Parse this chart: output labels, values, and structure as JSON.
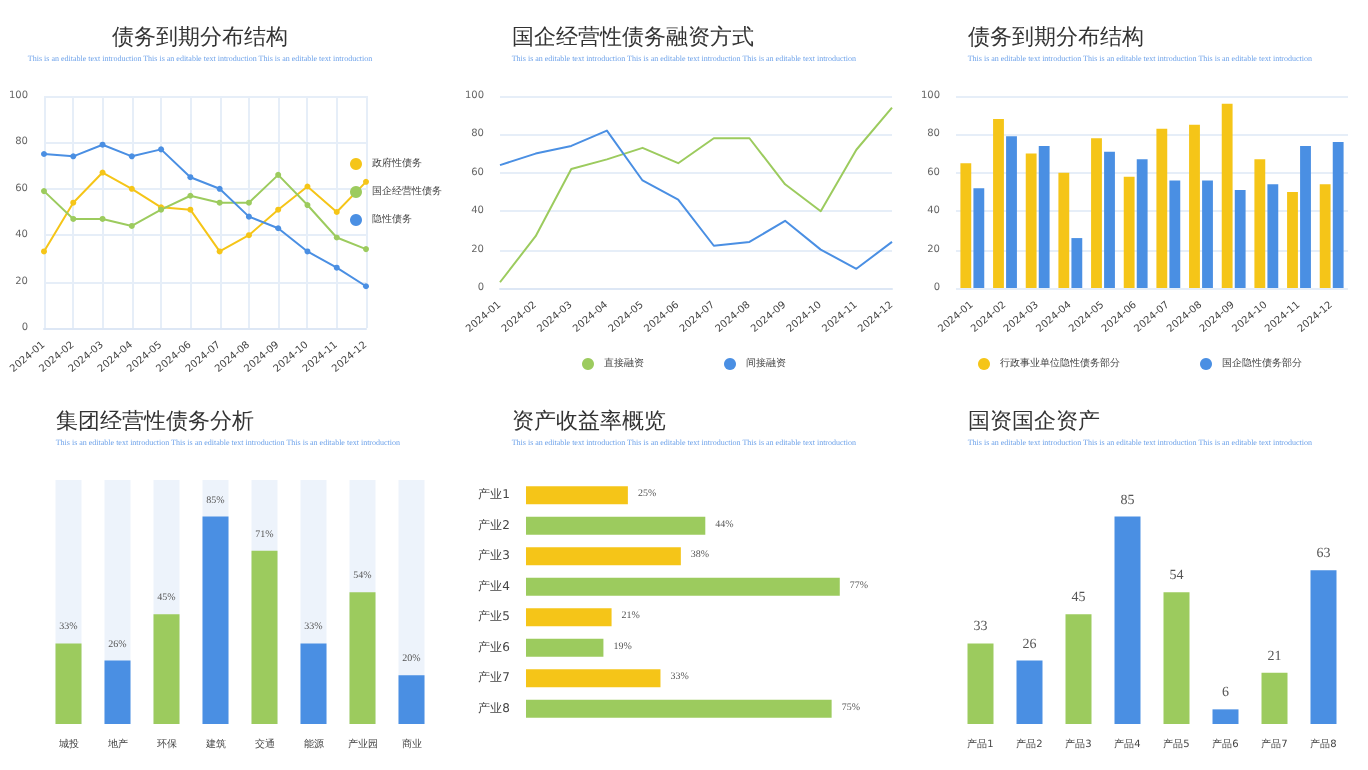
{
  "chart_data": [
    {
      "type": "line",
      "title": "债务到期分布结构",
      "subtitle": "This is an editable text introduction This is an editable text introduction This is an editable text introduction",
      "categories": [
        "2024-01",
        "2024-02",
        "2024-03",
        "2024-04",
        "2024-05",
        "2024-06",
        "2024-07",
        "2024-08",
        "2024-09",
        "2024-10",
        "2024-11",
        "2024-12"
      ],
      "series": [
        {
          "name": "政府性债务",
          "color": "#f5c518",
          "values": [
            33,
            54,
            67,
            60,
            52,
            51,
            33,
            40,
            51,
            61,
            50,
            63
          ]
        },
        {
          "name": "国企经营性债务",
          "color": "#9ccb5e",
          "values": [
            59,
            47,
            47,
            44,
            51,
            57,
            54,
            54,
            66,
            53,
            39,
            34
          ]
        },
        {
          "name": "隐性债务",
          "color": "#4a8fe3",
          "values": [
            75,
            74,
            79,
            74,
            77,
            65,
            60,
            48,
            43,
            33,
            26,
            18
          ]
        }
      ],
      "ylim": [
        0,
        100
      ],
      "yticks": [
        0,
        20,
        40,
        60,
        80,
        100
      ],
      "grid": true,
      "legend": "right",
      "marker": "circle"
    },
    {
      "type": "line",
      "title": "国企经营性债务融资方式",
      "subtitle": "This is an editable text introduction This is an editable text introduction This is an editable text introduction",
      "categories": [
        "2024-01",
        "2024-02",
        "2024-03",
        "2024-04",
        "2024-05",
        "2024-06",
        "2024-07",
        "2024-08",
        "2024-09",
        "2024-10",
        "2024-11",
        "2024-12"
      ],
      "series": [
        {
          "name": "直接融资",
          "color": "#9ccb5e",
          "values": [
            3,
            27,
            62,
            67,
            73,
            65,
            78,
            78,
            54,
            40,
            72,
            94
          ]
        },
        {
          "name": "间接融资",
          "color": "#4a8fe3",
          "values": [
            64,
            70,
            74,
            82,
            56,
            46,
            22,
            24,
            35,
            20,
            10,
            24
          ]
        }
      ],
      "ylim": [
        0,
        100
      ],
      "yticks": [
        0,
        20,
        40,
        60,
        80,
        100
      ],
      "grid": "y",
      "legend": "bottom",
      "marker": "none"
    },
    {
      "type": "bar",
      "title": "债务到期分布结构",
      "subtitle": "This is an editable text introduction This is an editable text introduction This is an editable text introduction",
      "categories": [
        "2024-01",
        "2024-02",
        "2024-03",
        "2024-04",
        "2024-05",
        "2024-06",
        "2024-07",
        "2024-08",
        "2024-09",
        "2024-10",
        "2024-11",
        "2024-12"
      ],
      "series": [
        {
          "name": "行政事业单位隐性债务部分",
          "color": "#f5c518",
          "values": [
            65,
            88,
            70,
            60,
            78,
            58,
            83,
            85,
            96,
            67,
            50,
            54
          ]
        },
        {
          "name": "国企隐性债务部分",
          "color": "#4a8fe3",
          "values": [
            52,
            79,
            74,
            26,
            71,
            67,
            56,
            56,
            51,
            54,
            74,
            76
          ]
        }
      ],
      "ylim": [
        0,
        100
      ],
      "yticks": [
        0,
        20,
        40,
        60,
        80,
        100
      ],
      "grid": "y",
      "legend": "bottom"
    },
    {
      "type": "bar",
      "title": "集团经营性债务分析",
      "subtitle": "This is an editable text introduction This is an editable text introduction This is an editable text introduction",
      "categories": [
        "城投",
        "地产",
        "环保",
        "建筑",
        "交通",
        "能源",
        "产业园",
        "商业"
      ],
      "values": [
        33,
        26,
        45,
        85,
        71,
        33,
        54,
        20
      ],
      "colors": [
        "#9ccb5e",
        "#4a8fe3",
        "#9ccb5e",
        "#4a8fe3",
        "#9ccb5e",
        "#4a8fe3",
        "#9ccb5e",
        "#4a8fe3"
      ],
      "value_labels": [
        "33%",
        "26%",
        "45%",
        "85%",
        "71%",
        "33%",
        "54%",
        "20%"
      ],
      "tick_labels": "x"
    },
    {
      "type": "bar",
      "orientation": "horizontal",
      "title": "资产收益率概览",
      "subtitle": "This is an editable text introduction This is an editable text introduction This is an editable text introduction",
      "categories": [
        "产业1",
        "产业2",
        "产业3",
        "产业4",
        "产业5",
        "产业6",
        "产业7",
        "产业8"
      ],
      "values": [
        25,
        44,
        38,
        77,
        21,
        19,
        33,
        75
      ],
      "colors": [
        "#f5c518",
        "#9ccb5e",
        "#f5c518",
        "#9ccb5e",
        "#f5c518",
        "#9ccb5e",
        "#f5c518",
        "#9ccb5e"
      ],
      "value_labels": [
        "25%",
        "44%",
        "38%",
        "77%",
        "21%",
        "19%",
        "33%",
        "75%"
      ],
      "tick_labels": "y"
    },
    {
      "type": "bar",
      "title": "国资国企资产",
      "subtitle": "This is an editable text introduction This is an editable text introduction This is an editable text introduction",
      "categories": [
        "产品1",
        "产品2",
        "产品3",
        "产品4",
        "产品5",
        "产品6",
        "产品7",
        "产品8"
      ],
      "values": [
        33,
        26,
        45,
        85,
        54,
        6,
        21,
        63
      ],
      "colors": [
        "#9ccb5e",
        "#4a8fe3",
        "#9ccb5e",
        "#4a8fe3",
        "#9ccb5e",
        "#4a8fe3",
        "#9ccb5e",
        "#4a8fe3"
      ],
      "data_labels": true,
      "tick_labels": "x"
    }
  ]
}
